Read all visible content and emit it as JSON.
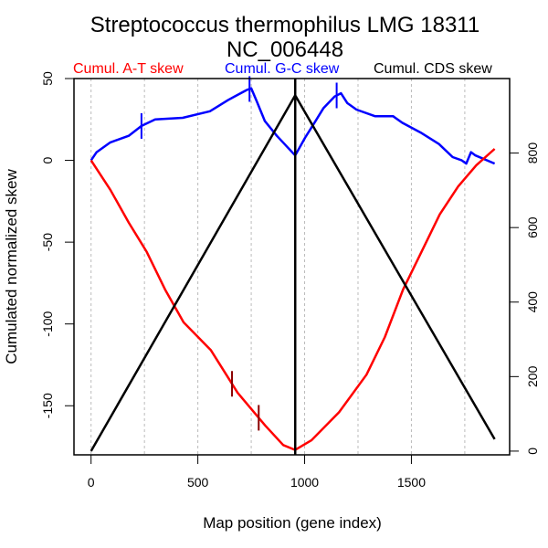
{
  "chart_data": {
    "type": "line",
    "title": "Streptococcus thermophilus LMG 18311",
    "subtitle": "NC_006448",
    "xlabel": "Map position (gene index)",
    "ylabel": "Cumulated normalized skew",
    "xlim": [
      -80,
      1960
    ],
    "ylim": [
      -180,
      50
    ],
    "y2lim": [
      -10,
      1000
    ],
    "x_ticks": [
      0,
      500,
      1000,
      1500
    ],
    "x_tick_labels": [
      "0",
      "500",
      "1000",
      "1500"
    ],
    "y_ticks": [
      50,
      0,
      -50,
      -100,
      -150
    ],
    "y_tick_labels": [
      "50",
      "0",
      "-50",
      "-100",
      "-150"
    ],
    "y2_ticks": [
      0,
      200,
      400,
      600,
      800
    ],
    "y2_tick_labels": [
      "0",
      "200",
      "400",
      "600",
      "800"
    ],
    "grid": "vertical dashed at every 250",
    "vline_x": 956,
    "legend": [
      {
        "label": "Cumul. A-T skew",
        "color": "#ff0000"
      },
      {
        "label": "Cumul. G-C skew",
        "color": "#0000ff"
      },
      {
        "label": "Cumul. CDS skew",
        "color": "#000000"
      }
    ],
    "series": [
      {
        "name": "Cumul. G-C skew",
        "color": "#0000ff",
        "axis": "left",
        "x": [
          0,
          26,
          90,
          176,
          236,
          300,
          429,
          557,
          643,
          729,
          750,
          776,
          814,
          870,
          956,
          1003,
          1046,
          1089,
          1140,
          1170,
          1200,
          1243,
          1329,
          1414,
          1457,
          1543,
          1629,
          1693,
          1736,
          1757,
          1779,
          1800,
          1890
        ],
        "y": [
          0,
          5,
          11,
          15,
          21,
          25,
          26,
          30,
          37,
          43,
          44,
          36,
          24,
          15,
          3,
          14,
          23,
          32,
          39,
          41,
          35,
          31,
          27,
          27,
          23,
          17,
          10,
          2,
          0,
          -2,
          5,
          3,
          -2
        ]
      },
      {
        "name": "Cumul. A-T skew",
        "color": "#ff0000",
        "axis": "left",
        "x": [
          0,
          90,
          176,
          261,
          347,
          433,
          561,
          686,
          815,
          900,
          956,
          1033,
          1161,
          1290,
          1376,
          1461,
          1547,
          1633,
          1719,
          1804,
          1890
        ],
        "y": [
          0,
          -18,
          -38,
          -56,
          -79,
          -99,
          -116,
          -142,
          -162,
          -174,
          -177,
          -171,
          -154,
          -131,
          -108,
          -79,
          -56,
          -33,
          -16,
          -3,
          7
        ]
      },
      {
        "name": "Cumul. CDS skew",
        "color": "#000000",
        "axis": "right",
        "x": [
          0,
          956,
          1890
        ],
        "y": [
          0,
          955,
          32
        ]
      }
    ],
    "markers": [
      {
        "series": "Cumul. G-C skew",
        "x": 236,
        "color": "#0000ff"
      },
      {
        "series": "Cumul. G-C skew",
        "x": 742,
        "color": "#0000ff"
      },
      {
        "series": "Cumul. G-C skew",
        "x": 1150,
        "color": "#0000ff"
      },
      {
        "series": "Cumul. A-T skew",
        "x": 660,
        "color": "#8b0000"
      },
      {
        "series": "Cumul. A-T skew",
        "x": 785,
        "color": "#8b0000"
      }
    ]
  }
}
